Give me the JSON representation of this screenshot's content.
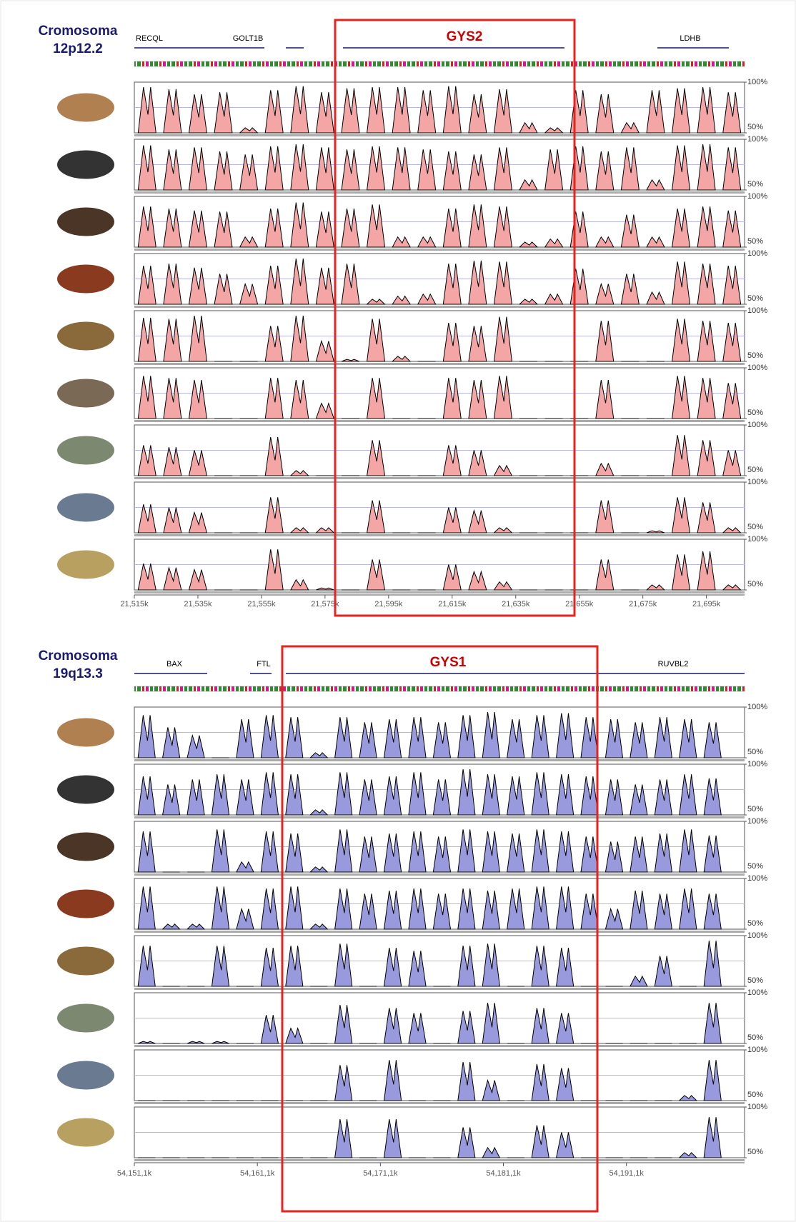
{
  "chart_data": [
    {
      "type": "conservation",
      "title": "Cromosoma",
      "subtitle": "12p12.2",
      "genes": [
        {
          "name": "RECQL",
          "color": "#000000"
        },
        {
          "name": "GOLT1B",
          "color": "#000000"
        },
        {
          "name": "GYS2",
          "color": "#cc0000"
        },
        {
          "name": "LDHB",
          "color": "#000000"
        }
      ],
      "xlim": [
        21515,
        21707
      ],
      "xticks": [
        {
          "value": 21515,
          "label": "21,515k"
        },
        {
          "value": 21535,
          "label": "21,535k"
        },
        {
          "value": 21555,
          "label": "21,555k"
        },
        {
          "value": 21575,
          "label": "21,575k"
        },
        {
          "value": 21595,
          "label": "21,595k"
        },
        {
          "value": 21615,
          "label": "21,615k"
        },
        {
          "value": 21635,
          "label": "21,635k"
        },
        {
          "value": 21655,
          "label": "21,655k"
        },
        {
          "value": 21675,
          "label": "21,675k"
        },
        {
          "value": 21695,
          "label": "21,695k"
        }
      ],
      "ylim": [
        50,
        100
      ],
      "yticks": [
        {
          "value": 100,
          "label": "100%"
        },
        {
          "value": 50,
          "label": "50%"
        }
      ],
      "x": [
        21519,
        21527,
        21535,
        21543,
        21551,
        21559,
        21567,
        21575,
        21583,
        21591,
        21599,
        21607,
        21615,
        21623,
        21631,
        21639,
        21647,
        21655,
        21663,
        21671,
        21679,
        21687,
        21695,
        21703
      ],
      "color": "#f4a6a6",
      "series": [
        {
          "values": [
            95,
            93,
            88,
            90,
            55,
            92,
            96,
            90,
            94,
            95,
            95,
            92,
            96,
            88,
            93,
            60,
            55,
            92,
            88,
            60,
            92,
            94,
            95,
            90
          ]
        },
        {
          "values": [
            94,
            90,
            92,
            88,
            85,
            93,
            95,
            92,
            90,
            93,
            92,
            90,
            88,
            85,
            92,
            60,
            90,
            93,
            88,
            92,
            60,
            94,
            95,
            92
          ]
        },
        {
          "values": [
            90,
            88,
            86,
            85,
            60,
            88,
            94,
            85,
            88,
            92,
            60,
            60,
            88,
            92,
            90,
            55,
            58,
            85,
            60,
            82,
            60,
            88,
            90,
            86
          ]
        },
        {
          "values": [
            88,
            90,
            86,
            80,
            70,
            88,
            95,
            86,
            90,
            55,
            58,
            60,
            90,
            93,
            92,
            55,
            60,
            85,
            70,
            80,
            62,
            92,
            90,
            88
          ]
        },
        {
          "values": [
            93,
            92,
            95,
            50,
            50,
            85,
            95,
            70,
            52,
            92,
            55,
            50,
            88,
            85,
            94,
            50,
            50,
            50,
            90,
            50,
            50,
            92,
            90,
            88
          ]
        },
        {
          "values": [
            92,
            90,
            88,
            50,
            50,
            90,
            88,
            65,
            50,
            90,
            50,
            50,
            90,
            88,
            92,
            50,
            50,
            50,
            88,
            50,
            50,
            92,
            90,
            85
          ]
        },
        {
          "values": [
            80,
            78,
            75,
            50,
            50,
            88,
            55,
            50,
            50,
            85,
            50,
            50,
            80,
            75,
            60,
            50,
            50,
            50,
            62,
            50,
            50,
            90,
            85,
            75
          ]
        },
        {
          "values": [
            78,
            75,
            70,
            50,
            50,
            85,
            55,
            55,
            50,
            82,
            50,
            50,
            75,
            72,
            55,
            50,
            50,
            50,
            82,
            50,
            52,
            85,
            80,
            55
          ]
        },
        {
          "values": [
            76,
            72,
            70,
            50,
            50,
            90,
            60,
            52,
            50,
            80,
            50,
            50,
            75,
            68,
            58,
            50,
            50,
            50,
            80,
            50,
            55,
            85,
            88,
            55
          ]
        }
      ]
    },
    {
      "type": "conservation",
      "title": "Cromosoma",
      "subtitle": "19q13.3",
      "genes": [
        {
          "name": "BAX",
          "color": "#000000"
        },
        {
          "name": "FTL",
          "color": "#000000"
        },
        {
          "name": "GYS1",
          "color": "#cc0000"
        },
        {
          "name": "RUVBL2",
          "color": "#000000"
        }
      ],
      "xlim": [
        54151.1,
        54200.7
      ],
      "xticks": [
        {
          "value": 54151.1,
          "label": "54,151,1k"
        },
        {
          "value": 54161.1,
          "label": "54,161,1k"
        },
        {
          "value": 54171.1,
          "label": "54,171,1k"
        },
        {
          "value": 54181.1,
          "label": "54,181,1k"
        },
        {
          "value": 54191.1,
          "label": "54,191,1k"
        }
      ],
      "ylim": [
        50,
        100
      ],
      "yticks": [
        {
          "value": 100,
          "label": "100%"
        },
        {
          "value": 50,
          "label": "50%"
        }
      ],
      "x": [
        54152.1,
        54154.1,
        54156.1,
        54158.1,
        54160.1,
        54162.1,
        54164.1,
        54166.1,
        54168.1,
        54170.1,
        54172.1,
        54174.1,
        54176.1,
        54178.1,
        54180.1,
        54182.1,
        54184.1,
        54186.1,
        54188.1,
        54190.1,
        54192.1,
        54194.1,
        54196.1,
        54198.1
      ],
      "color": "#9999dd",
      "series": [
        {
          "values": [
            92,
            80,
            72,
            50,
            88,
            92,
            90,
            55,
            90,
            85,
            88,
            90,
            85,
            92,
            95,
            88,
            92,
            94,
            90,
            88,
            85,
            90,
            88,
            85
          ]
        },
        {
          "values": [
            88,
            80,
            85,
            90,
            85,
            92,
            90,
            55,
            92,
            85,
            88,
            92,
            85,
            95,
            90,
            88,
            92,
            90,
            88,
            85,
            80,
            85,
            90,
            86
          ]
        },
        {
          "values": [
            90,
            50,
            50,
            92,
            60,
            90,
            88,
            55,
            92,
            85,
            88,
            90,
            85,
            92,
            90,
            88,
            92,
            90,
            85,
            80,
            85,
            88,
            92,
            86
          ]
        },
        {
          "values": [
            92,
            55,
            55,
            92,
            70,
            90,
            92,
            55,
            90,
            85,
            88,
            90,
            85,
            90,
            88,
            90,
            92,
            92,
            85,
            70,
            88,
            85,
            90,
            85
          ]
        },
        {
          "values": [
            90,
            50,
            50,
            90,
            50,
            88,
            90,
            50,
            92,
            50,
            88,
            85,
            50,
            90,
            92,
            50,
            90,
            88,
            50,
            50,
            60,
            80,
            50,
            95
          ]
        },
        {
          "values": [
            52,
            50,
            52,
            52,
            50,
            78,
            65,
            50,
            88,
            50,
            85,
            80,
            50,
            82,
            90,
            50,
            85,
            80,
            50,
            50,
            50,
            50,
            50,
            90
          ]
        },
        {
          "values": [
            50,
            50,
            50,
            50,
            50,
            50,
            50,
            50,
            85,
            50,
            90,
            50,
            50,
            88,
            70,
            50,
            86,
            82,
            50,
            50,
            50,
            50,
            55,
            90
          ]
        },
        {
          "values": [
            50,
            50,
            50,
            50,
            50,
            50,
            50,
            50,
            88,
            50,
            88,
            50,
            50,
            80,
            60,
            50,
            82,
            75,
            50,
            50,
            50,
            50,
            55,
            90
          ]
        }
      ]
    }
  ]
}
